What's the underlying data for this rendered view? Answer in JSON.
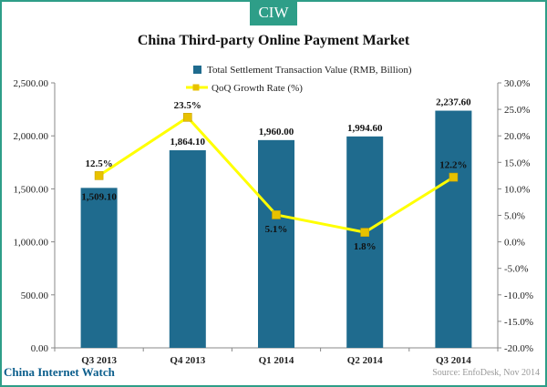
{
  "badge": "CIW",
  "footer": {
    "left": "China Internet Watch",
    "right": "Source: EnfoDesk, Nov 2014"
  },
  "colors": {
    "bar": "#1f6b8e",
    "line": "#ffff00",
    "marker": "#e8c100",
    "accent": "#2e9e88"
  },
  "chart_data": {
    "type": "bar",
    "title": "China Third-party Online Payment Market",
    "categories": [
      "Q3 2013",
      "Q4 2013",
      "Q1 2014",
      "Q2 2014",
      "Q3 2014"
    ],
    "series": [
      {
        "name": "Total Settlement Transaction Value (RMB, Billion)",
        "kind": "bar",
        "axis": "left",
        "values": [
          1509.1,
          1864.1,
          1960.0,
          1994.6,
          2237.6
        ],
        "labels": [
          "1,509.10",
          "1,864.10",
          "1,960.00",
          "1,994.60",
          "2,237.60"
        ]
      },
      {
        "name": "QoQ Growth Rate (%)",
        "kind": "line",
        "axis": "right",
        "values": [
          12.5,
          23.5,
          5.1,
          1.8,
          12.2
        ],
        "labels": [
          "12.5%",
          "23.5%",
          "5.1%",
          "1.8%",
          "12.2%"
        ]
      }
    ],
    "y_left": {
      "range": [
        0,
        2500
      ],
      "ticks": [
        "0.00",
        "500.00",
        "1,000.00",
        "1,500.00",
        "2,000.00",
        "2,500.00"
      ]
    },
    "y_right": {
      "range": [
        -20,
        30
      ],
      "ticks": [
        "-20.0%",
        "-15.0%",
        "-10.0%",
        "-5.0%",
        "0.0%",
        "5.0%",
        "10.0%",
        "15.0%",
        "20.0%",
        "25.0%",
        "30.0%"
      ]
    },
    "legend_position": "top-center",
    "grid": false
  }
}
